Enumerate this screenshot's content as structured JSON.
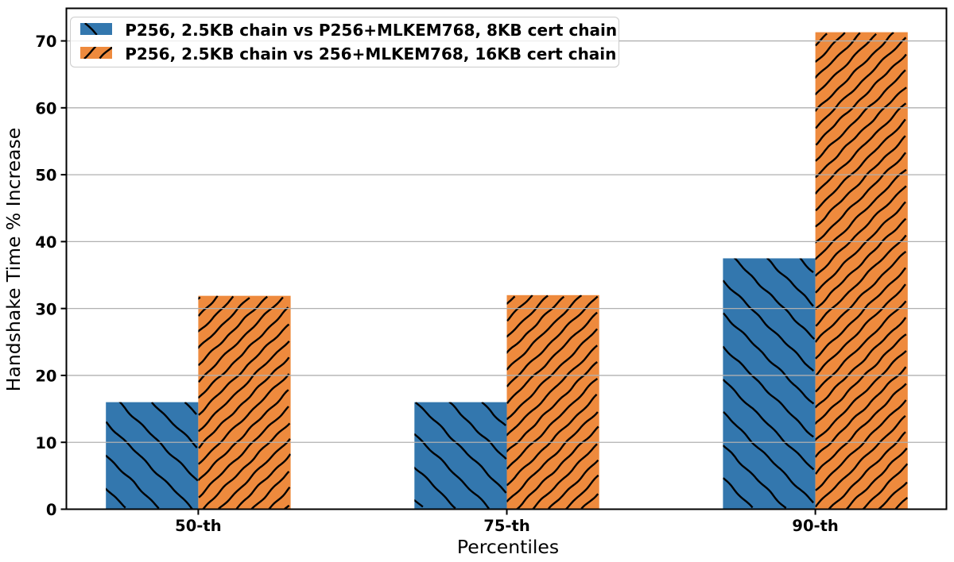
{
  "chart_data": {
    "type": "bar",
    "categories": [
      "50-th",
      "75-th",
      "90-th"
    ],
    "series": [
      {
        "name": "P256, 2.5KB chain vs P256+MLKEM768, 8KB cert chain",
        "values": [
          16.0,
          16.0,
          37.5
        ],
        "color": "#3377ae",
        "hatch": "\\"
      },
      {
        "name": "P256, 2.5KB chain vs 256+MLKEM768, 16KB cert chain",
        "values": [
          31.9,
          32.0,
          71.3
        ],
        "color": "#ee8a3d",
        "hatch": "/"
      }
    ],
    "title": "",
    "xlabel": "Percentiles",
    "ylabel": "Handshake Time % Increase",
    "ylim": [
      0,
      74.87
    ],
    "yticks": [
      0,
      10,
      20,
      30,
      40,
      50,
      60,
      70
    ],
    "grid": "horizontal",
    "grid_color": "#b0b0b0",
    "hatch_color": "#000000",
    "legend_position": "upper left",
    "legend": [
      "P256, 2.5KB chain vs P256+MLKEM768, 8KB cert chain",
      "P256, 2.5KB chain vs 256+MLKEM768, 16KB cert chain"
    ]
  }
}
